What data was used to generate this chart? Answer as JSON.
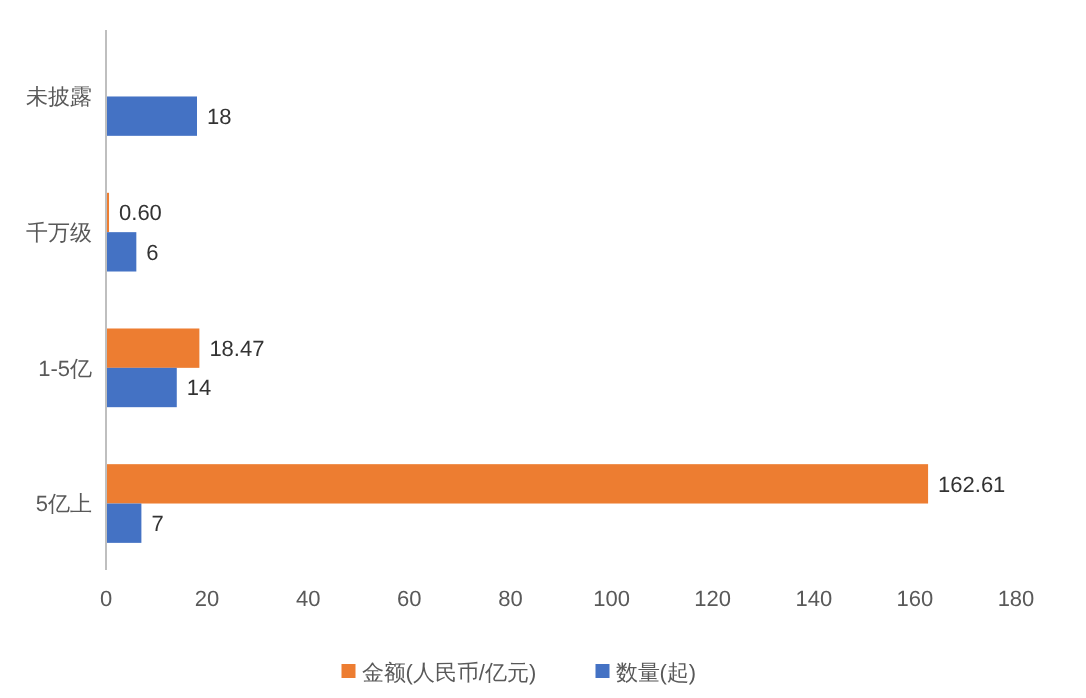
{
  "chart_data": {
    "type": "bar",
    "orientation": "horizontal",
    "categories": [
      "未披露",
      "千万级",
      "1-5亿",
      "5亿上"
    ],
    "series": [
      {
        "name": "金额(人民币/亿元)",
        "color": "#ed7d31",
        "values": [
          null,
          0.6,
          18.47,
          162.61
        ],
        "value_labels": [
          null,
          "0.60",
          "18.47",
          "162.61"
        ]
      },
      {
        "name": "数量(起)",
        "color": "#4472c4",
        "values": [
          18,
          6,
          14,
          7
        ],
        "value_labels": [
          "18",
          "6",
          "14",
          "7"
        ]
      }
    ],
    "xlim": [
      0,
      180
    ],
    "xticks": [
      0,
      20,
      40,
      60,
      80,
      100,
      120,
      140,
      160,
      180
    ],
    "grid": false,
    "legend": "bottom"
  }
}
